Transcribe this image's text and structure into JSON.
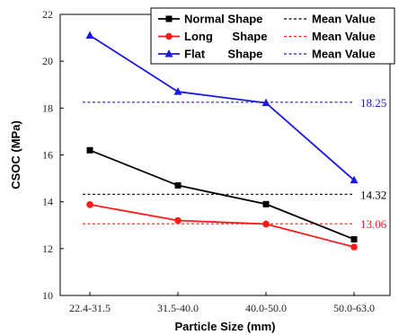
{
  "chart_data": {
    "type": "line",
    "xlabel": "Particle Size (mm)",
    "ylabel": "CSOC (MPa)",
    "ylim": [
      10,
      22
    ],
    "yticks": [
      10,
      12,
      14,
      16,
      18,
      20,
      22
    ],
    "categories": [
      "22.4-31.5",
      "31.5-40.0",
      "40.0-50.0",
      "50.0-63.0"
    ],
    "series": [
      {
        "name": "Normal Shape",
        "color": "#000000",
        "marker": "square",
        "values": [
          16.2,
          14.7,
          13.9,
          12.4
        ],
        "mean": 14.32,
        "mean_label": "14.32",
        "legend_label": "Normal Shape",
        "legend_mean_label": "Mean Value"
      },
      {
        "name": "Long Shape",
        "color": "#ff1a1a",
        "marker": "circle",
        "values": [
          13.88,
          13.2,
          13.05,
          12.07
        ],
        "mean": 13.06,
        "mean_label": "13.06",
        "legend_label": "Long      Shape",
        "legend_mean_label": "Mean Value"
      },
      {
        "name": "Flat Shape",
        "color": "#1a1adc",
        "marker": "triangle",
        "values": [
          21.1,
          18.7,
          18.22,
          14.92
        ],
        "mean": 18.25,
        "mean_label": "18.25",
        "legend_label": "Flat       Shape",
        "legend_mean_label": "Mean Value"
      }
    ],
    "legend_position": "top-right",
    "grid": false
  }
}
